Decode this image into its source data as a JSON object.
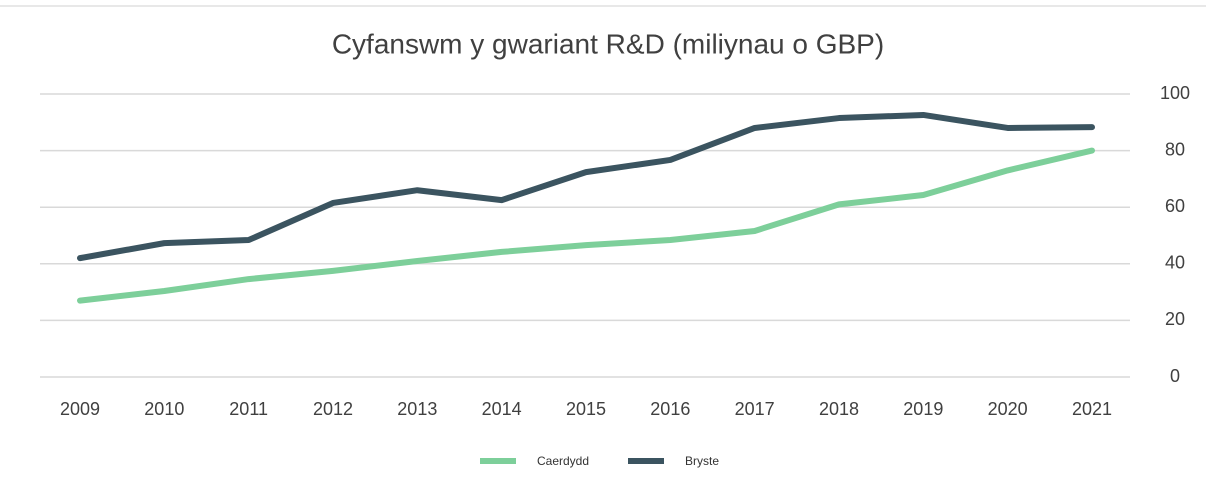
{
  "chart_data": {
    "type": "line",
    "title": "Cyfanswm y gwariant R&D (miliynau o GBP)",
    "categories": [
      "2009",
      "2010",
      "2011",
      "2012",
      "2013",
      "2014",
      "2015",
      "2016",
      "2017",
      "2018",
      "2019",
      "2020",
      "2021"
    ],
    "series": [
      {
        "name": "Caerdydd",
        "color": "#7dcf9a",
        "values": [
          27,
          30.4,
          34.6,
          37.5,
          41,
          44.2,
          46.6,
          48.4,
          51.6,
          61,
          64.3,
          73,
          80
        ]
      },
      {
        "name": "Bryste",
        "color": "#3b5460",
        "values": [
          42,
          47.3,
          48.4,
          61.5,
          66,
          62.5,
          72.4,
          76.7,
          88,
          91.5,
          92.6,
          88,
          88.3
        ]
      }
    ],
    "ylim": [
      0,
      100
    ],
    "yticks": [
      0,
      20,
      40,
      60,
      80,
      100
    ],
    "grid": true,
    "legend": "bottom"
  }
}
